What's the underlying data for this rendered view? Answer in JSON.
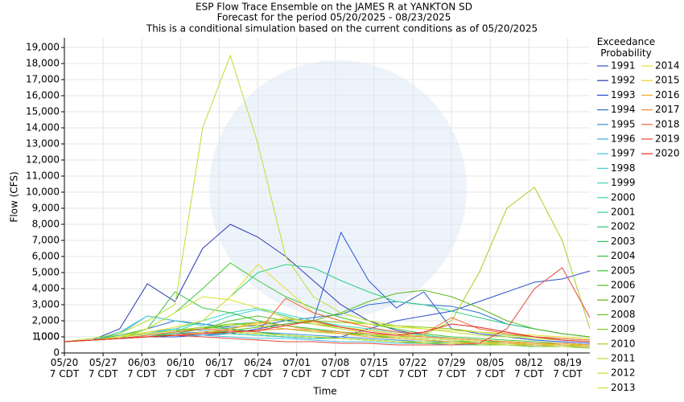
{
  "chart_data": {
    "type": "line",
    "title": "ESP Flow Trace Ensemble on the JAMES R at YANKTON SD",
    "subtitle": "Forecast for the period 05/20/2025 - 08/23/2025",
    "subtitle2": "This is a conditional simulation based on the current conditions as of 05/20/2025",
    "xlabel": "Time",
    "ylabel": "Flow (CFS)",
    "legend_title": "Exceedance Probability",
    "grid": true,
    "xlim": [
      0,
      95
    ],
    "xticks": [
      {
        "value": 0,
        "label": "05/20 7 CDT"
      },
      {
        "value": 7,
        "label": "05/27 7 CDT"
      },
      {
        "value": 14,
        "label": "06/03 7 CDT"
      },
      {
        "value": 21,
        "label": "06/10 7 CDT"
      },
      {
        "value": 28,
        "label": "06/17 7 CDT"
      },
      {
        "value": 35,
        "label": "06/24 7 CDT"
      },
      {
        "value": 42,
        "label": "07/01 7 CDT"
      },
      {
        "value": 49,
        "label": "07/08 7 CDT"
      },
      {
        "value": 56,
        "label": "07/15 7 CDT"
      },
      {
        "value": 63,
        "label": "07/22 7 CDT"
      },
      {
        "value": 70,
        "label": "07/29 7 CDT"
      },
      {
        "value": 77,
        "label": "08/05 7 CDT"
      },
      {
        "value": 84,
        "label": "08/12 7 CDT"
      },
      {
        "value": 91,
        "label": "08/19 7 CDT"
      }
    ],
    "ylim": [
      0,
      19600
    ],
    "yticks": [
      0,
      1000,
      {
        "value": 1000,
        "label": "1,000"
      },
      {
        "value": 2000,
        "label": "2,000"
      },
      {
        "value": 3000,
        "label": "3,000"
      },
      {
        "value": 4000,
        "label": "4,000"
      },
      {
        "value": 5000,
        "label": "5,000"
      },
      {
        "value": 6000,
        "label": "6,000"
      },
      {
        "value": 7000,
        "label": "7,000"
      },
      {
        "value": 8000,
        "label": "8,000"
      },
      {
        "value": 9000,
        "label": "9,000"
      },
      {
        "value": 10000,
        "label": "10,000"
      },
      {
        "value": 11000,
        "label": "11,000"
      },
      {
        "value": 12000,
        "label": "12,000"
      },
      {
        "value": 13000,
        "label": "13,000"
      },
      {
        "value": 14000,
        "label": "14,000"
      },
      {
        "value": 15000,
        "label": "15,000"
      },
      {
        "value": 16000,
        "label": "16,000"
      },
      {
        "value": 17000,
        "label": "17,000"
      },
      {
        "value": 18000,
        "label": "18,000"
      },
      {
        "value": 19000,
        "label": "19,000"
      }
    ],
    "x": [
      0,
      5,
      10,
      15,
      20,
      25,
      30,
      35,
      40,
      45,
      50,
      55,
      60,
      65,
      70,
      75,
      80,
      85,
      90,
      95
    ],
    "series": [
      {
        "name": "1991",
        "color": "#3050c8",
        "values": [
          700,
          800,
          900,
          1000,
          1200,
          1300,
          1200,
          1100,
          1000,
          900,
          1000,
          1500,
          2000,
          2300,
          2600,
          3200,
          3800,
          4400,
          4600,
          5100
        ]
      },
      {
        "name": "1992",
        "color": "#2838b0",
        "values": [
          700,
          800,
          1500,
          4300,
          3200,
          6500,
          8000,
          7200,
          6000,
          4500,
          3000,
          2000,
          1400,
          1100,
          900,
          800,
          700,
          600,
          500,
          500
        ]
      },
      {
        "name": "1993",
        "color": "#2850d8",
        "values": [
          700,
          800,
          900,
          1000,
          1000,
          1100,
          1200,
          1500,
          1800,
          2000,
          7500,
          4500,
          2800,
          3800,
          1500,
          1200,
          1000,
          800,
          700,
          600
        ]
      },
      {
        "name": "1994",
        "color": "#3070d0",
        "values": [
          700,
          800,
          1000,
          1500,
          2000,
          1800,
          1600,
          1700,
          2000,
          2200,
          2400,
          3000,
          3200,
          3000,
          2900,
          2500,
          1800,
          1500,
          1200,
          1000
        ]
      },
      {
        "name": "1995",
        "color": "#3890d8",
        "values": [
          700,
          800,
          1200,
          2300,
          2000,
          1800,
          1500,
          1300,
          1200,
          1100,
          1000,
          900,
          800,
          700,
          700,
          600,
          600,
          500,
          500,
          400
        ]
      },
      {
        "name": "1996",
        "color": "#40a8e0",
        "values": [
          700,
          800,
          1000,
          1300,
          1500,
          1400,
          1300,
          1200,
          1100,
          1000,
          900,
          800,
          700,
          700,
          600,
          600,
          500,
          500,
          400,
          400
        ]
      },
      {
        "name": "1997",
        "color": "#48c0e8",
        "values": [
          700,
          800,
          900,
          1000,
          1100,
          1100,
          1000,
          900,
          900,
          800,
          700,
          700,
          600,
          600,
          500,
          500,
          500,
          400,
          400,
          400
        ]
      },
      {
        "name": "1998",
        "color": "#40d0d0",
        "values": [
          700,
          800,
          1300,
          2300,
          2000,
          1700,
          2300,
          2700,
          2300,
          1800,
          1500,
          1200,
          1000,
          900,
          800,
          700,
          600,
          500,
          500,
          400
        ]
      },
      {
        "name": "1999",
        "color": "#40d8b8",
        "values": [
          700,
          800,
          1000,
          1200,
          1500,
          2000,
          2500,
          2800,
          2400,
          2000,
          1700,
          1500,
          1300,
          1100,
          900,
          800,
          700,
          600,
          600,
          500
        ]
      },
      {
        "name": "2000",
        "color": "#38d8a0",
        "values": [
          700,
          800,
          900,
          1000,
          1100,
          1200,
          1200,
          1100,
          1000,
          900,
          900,
          800,
          700,
          700,
          600,
          600,
          500,
          500,
          500,
          400
        ]
      },
      {
        "name": "2001",
        "color": "#30d088",
        "values": [
          700,
          800,
          900,
          1000,
          1300,
          2000,
          3500,
          5000,
          5500,
          5300,
          4500,
          3800,
          3200,
          3000,
          2600,
          2200,
          1800,
          1500,
          1200,
          1000
        ]
      },
      {
        "name": "2002",
        "color": "#30c870",
        "values": [
          700,
          800,
          900,
          1100,
          1300,
          1500,
          1800,
          1900,
          1700,
          1500,
          1300,
          1100,
          1000,
          900,
          800,
          700,
          700,
          600,
          600,
          500
        ]
      },
      {
        "name": "2003",
        "color": "#30c058",
        "values": [
          700,
          800,
          1000,
          1200,
          1400,
          1600,
          1500,
          1300,
          1100,
          1000,
          900,
          800,
          700,
          600,
          600,
          500,
          500,
          400,
          400,
          400
        ]
      },
      {
        "name": "2004",
        "color": "#38c040",
        "values": [
          700,
          800,
          1100,
          1500,
          3800,
          2800,
          2500,
          2000,
          1700,
          1500,
          1300,
          1100,
          900,
          800,
          700,
          700,
          600,
          500,
          500,
          400
        ]
      },
      {
        "name": "2005",
        "color": "#40c830",
        "values": [
          700,
          800,
          900,
          1500,
          2500,
          4000,
          5600,
          4500,
          3500,
          2800,
          2200,
          1800,
          1500,
          1200,
          1000,
          900,
          800,
          700,
          600,
          500
        ]
      },
      {
        "name": "2006",
        "color": "#50c028",
        "values": [
          700,
          800,
          900,
          1000,
          1200,
          1500,
          2000,
          2300,
          2000,
          1800,
          1600,
          1400,
          1200,
          1000,
          900,
          800,
          700,
          600,
          500,
          400
        ]
      },
      {
        "name": "2007",
        "color": "#60b820",
        "values": [
          700,
          800,
          900,
          1000,
          1100,
          1200,
          1400,
          1600,
          1800,
          2000,
          2500,
          3200,
          3700,
          3900,
          3500,
          2800,
          2000,
          1500,
          1200,
          1000
        ]
      },
      {
        "name": "2008",
        "color": "#70c020",
        "values": [
          700,
          800,
          900,
          1000,
          1100,
          1200,
          1300,
          1200,
          1100,
          1000,
          900,
          800,
          700,
          600,
          600,
          500,
          500,
          400,
          400,
          300
        ]
      },
      {
        "name": "2009",
        "color": "#88c820",
        "values": [
          700,
          800,
          1000,
          1200,
          1400,
          1500,
          1700,
          1900,
          2100,
          2000,
          1900,
          1800,
          1700,
          1600,
          1500,
          1300,
          1100,
          1000,
          900,
          800
        ]
      },
      {
        "name": "2010",
        "color": "#a8d020",
        "values": [
          700,
          800,
          1000,
          1200,
          1400,
          1600,
          1800,
          1700,
          1500,
          1300,
          1200,
          1100,
          1000,
          1100,
          2000,
          5000,
          9000,
          10300,
          7000,
          1500
        ]
      },
      {
        "name": "2011",
        "color": "#b8e030",
        "values": [
          700,
          900,
          1200,
          2000,
          3000,
          14000,
          18500,
          13000,
          6000,
          3500,
          2500,
          2000,
          1700,
          1500,
          1300,
          1100,
          1000,
          900,
          800,
          700
        ]
      },
      {
        "name": "2012",
        "color": "#c8e030",
        "values": [
          700,
          800,
          900,
          1000,
          1100,
          1200,
          1300,
          1200,
          1100,
          1000,
          900,
          800,
          700,
          700,
          600,
          600,
          500,
          500,
          400,
          400
        ]
      },
      {
        "name": "2013",
        "color": "#d8e030",
        "values": [
          700,
          800,
          1000,
          1500,
          2500,
          3500,
          3300,
          2800,
          2200,
          1800,
          1500,
          1200,
          1000,
          900,
          800,
          700,
          600,
          600,
          500,
          500
        ]
      },
      {
        "name": "2014",
        "color": "#e8e030",
        "values": [
          700,
          800,
          1000,
          1300,
          1600,
          2000,
          3500,
          5500,
          4000,
          2500,
          2000,
          1800,
          1600,
          1500,
          1400,
          1300,
          1200,
          1100,
          1000,
          900
        ]
      },
      {
        "name": "2015",
        "color": "#f0c830",
        "values": [
          700,
          800,
          900,
          1000,
          1100,
          1300,
          1500,
          1800,
          2200,
          1900,
          1600,
          1400,
          1200,
          1000,
          900,
          800,
          700,
          600,
          600,
          500
        ]
      },
      {
        "name": "2016",
        "color": "#f0a830",
        "values": [
          700,
          800,
          900,
          1000,
          1100,
          1200,
          1500,
          1900,
          1700,
          1400,
          1200,
          1000,
          900,
          800,
          700,
          600,
          600,
          500,
          500,
          400
        ]
      },
      {
        "name": "2017",
        "color": "#f08830",
        "values": [
          700,
          800,
          900,
          1000,
          1100,
          1200,
          1300,
          1400,
          1500,
          1400,
          1300,
          1200,
          1100,
          1000,
          900,
          800,
          700,
          600,
          600,
          500
        ]
      },
      {
        "name": "2018",
        "color": "#f06838",
        "values": [
          700,
          800,
          900,
          1100,
          1300,
          1500,
          1400,
          1300,
          3400,
          2500,
          2000,
          1600,
          1300,
          1200,
          2200,
          1500,
          1200,
          1000,
          900,
          800
        ]
      },
      {
        "name": "2019",
        "color": "#e84838",
        "values": [
          700,
          800,
          900,
          1000,
          1100,
          1000,
          900,
          800,
          700,
          700,
          600,
          600,
          500,
          500,
          500,
          600,
          1500,
          4000,
          5300,
          2200
        ]
      },
      {
        "name": "2020",
        "color": "#e02828",
        "values": [
          700,
          800,
          900,
          1000,
          1100,
          1200,
          1300,
          1400,
          1700,
          2000,
          1600,
          1300,
          1100,
          1300,
          1800,
          1600,
          1300,
          1000,
          800,
          700
        ]
      }
    ]
  }
}
